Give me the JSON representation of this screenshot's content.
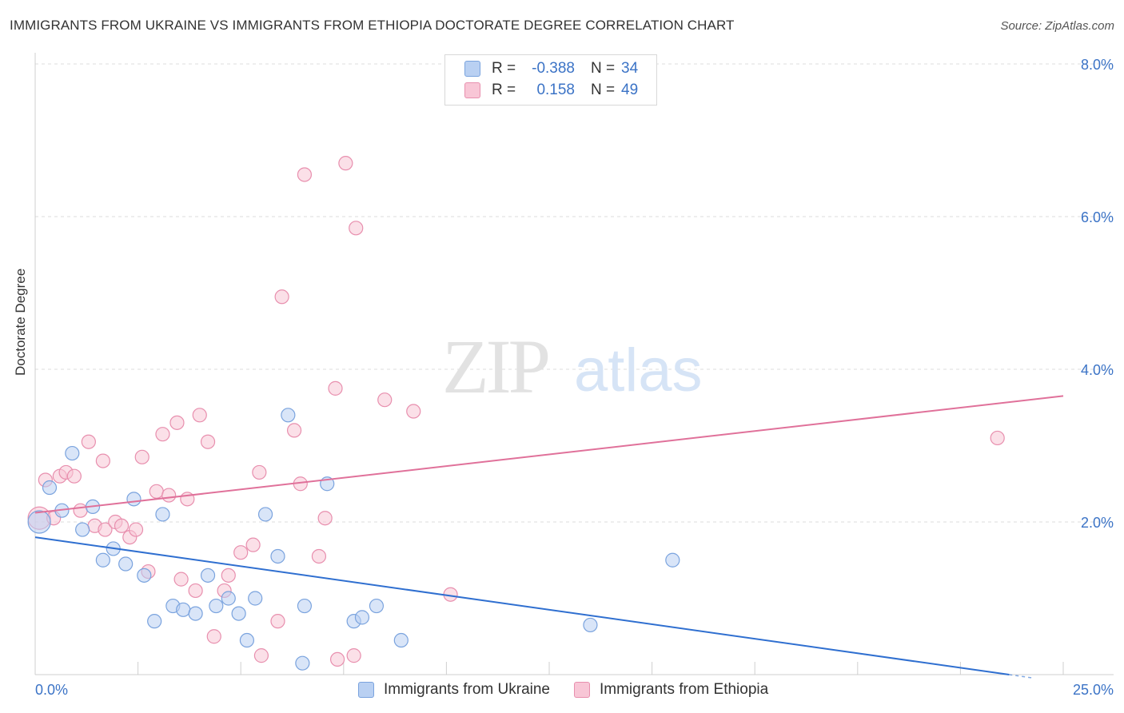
{
  "title": "IMMIGRANTS FROM UKRAINE VS IMMIGRANTS FROM ETHIOPIA DOCTORATE DEGREE CORRELATION CHART",
  "source": "Source: ZipAtlas.com",
  "watermark": {
    "zip": "ZIP",
    "atlas": "atlas"
  },
  "legend_top": [
    {
      "r_label": "R =",
      "r_value": "-0.388",
      "n_label": "N =",
      "n_value": "34"
    },
    {
      "r_label": "R =",
      "r_value": "0.158",
      "n_label": "N =",
      "n_value": "49"
    }
  ],
  "legend_bottom": [
    "Immigrants from Ukraine",
    "Immigrants from Ethiopia"
  ],
  "colors": {
    "ukraine_fill": "#b9d0f2",
    "ukraine_stroke": "#7aa3de",
    "ukraine_line": "#2f6fd0",
    "ethiopia_fill": "#f8c6d6",
    "ethiopia_stroke": "#e88fae",
    "ethiopia_line": "#e0719a",
    "tick_text": "#3b73c6",
    "grid": "#dcdcdc"
  },
  "chart_data": {
    "type": "scatter",
    "title": "IMMIGRANTS FROM UKRAINE VS IMMIGRANTS FROM ETHIOPIA DOCTORATE DEGREE CORRELATION CHART",
    "xlabel": "",
    "ylabel": "Doctorate Degree",
    "xlim": [
      0,
      25
    ],
    "ylim": [
      0,
      8.0
    ],
    "x_tick_labels": [
      "0.0%",
      "25.0%"
    ],
    "y_ticks": [
      2.0,
      4.0,
      6.0,
      8.0
    ],
    "y_tick_labels": [
      "2.0%",
      "4.0%",
      "6.0%",
      "8.0%"
    ],
    "series": [
      {
        "name": "Immigrants from Ukraine",
        "r": -0.388,
        "n": 34,
        "trend": {
          "x": [
            0,
            25
          ],
          "y": [
            1.8,
            -0.1
          ]
        },
        "points": [
          [
            0.1,
            2.0
          ],
          [
            0.35,
            2.45
          ],
          [
            0.65,
            2.15
          ],
          [
            0.9,
            2.9
          ],
          [
            1.15,
            1.9
          ],
          [
            1.4,
            2.2
          ],
          [
            1.65,
            1.5
          ],
          [
            1.9,
            1.65
          ],
          [
            2.2,
            1.45
          ],
          [
            2.4,
            2.3
          ],
          [
            2.65,
            1.3
          ],
          [
            2.9,
            0.7
          ],
          [
            3.1,
            2.1
          ],
          [
            3.35,
            0.9
          ],
          [
            3.6,
            0.85
          ],
          [
            3.9,
            0.8
          ],
          [
            4.2,
            1.3
          ],
          [
            4.4,
            0.9
          ],
          [
            4.7,
            1.0
          ],
          [
            4.95,
            0.8
          ],
          [
            5.15,
            0.45
          ],
          [
            5.35,
            1.0
          ],
          [
            5.6,
            2.1
          ],
          [
            5.9,
            1.55
          ],
          [
            6.15,
            3.4
          ],
          [
            6.5,
            0.15
          ],
          [
            6.55,
            0.9
          ],
          [
            7.1,
            2.5
          ],
          [
            7.75,
            0.7
          ],
          [
            7.95,
            0.75
          ],
          [
            8.3,
            0.9
          ],
          [
            8.9,
            0.45
          ],
          [
            13.5,
            0.65
          ],
          [
            15.5,
            1.5
          ]
        ]
      },
      {
        "name": "Immigrants from Ethiopia",
        "r": 0.158,
        "n": 49,
        "trend": {
          "x": [
            0,
            25
          ],
          "y": [
            2.12,
            3.65
          ]
        },
        "points": [
          [
            0.1,
            2.05
          ],
          [
            0.25,
            2.55
          ],
          [
            0.45,
            2.05
          ],
          [
            0.6,
            2.6
          ],
          [
            0.75,
            2.65
          ],
          [
            0.95,
            2.6
          ],
          [
            1.1,
            2.15
          ],
          [
            1.3,
            3.05
          ],
          [
            1.45,
            1.95
          ],
          [
            1.65,
            2.8
          ],
          [
            1.7,
            1.9
          ],
          [
            1.95,
            2.0
          ],
          [
            2.1,
            1.95
          ],
          [
            2.3,
            1.8
          ],
          [
            2.45,
            1.9
          ],
          [
            2.6,
            2.85
          ],
          [
            2.75,
            1.35
          ],
          [
            2.95,
            2.4
          ],
          [
            3.1,
            3.15
          ],
          [
            3.25,
            2.35
          ],
          [
            3.45,
            3.3
          ],
          [
            3.55,
            1.25
          ],
          [
            3.7,
            2.3
          ],
          [
            3.9,
            1.1
          ],
          [
            4.0,
            3.4
          ],
          [
            4.2,
            3.05
          ],
          [
            4.35,
            0.5
          ],
          [
            4.6,
            1.1
          ],
          [
            4.7,
            1.3
          ],
          [
            5.0,
            1.6
          ],
          [
            5.3,
            1.7
          ],
          [
            5.45,
            2.65
          ],
          [
            5.5,
            0.25
          ],
          [
            5.9,
            0.7
          ],
          [
            6.0,
            4.95
          ],
          [
            6.3,
            3.2
          ],
          [
            6.45,
            2.5
          ],
          [
            6.55,
            6.55
          ],
          [
            6.9,
            1.55
          ],
          [
            7.05,
            2.05
          ],
          [
            7.3,
            3.75
          ],
          [
            7.35,
            0.2
          ],
          [
            7.55,
            6.7
          ],
          [
            7.75,
            0.25
          ],
          [
            7.8,
            5.85
          ],
          [
            8.5,
            3.6
          ],
          [
            9.2,
            3.45
          ],
          [
            10.1,
            1.05
          ],
          [
            23.4,
            3.1
          ]
        ]
      }
    ]
  }
}
